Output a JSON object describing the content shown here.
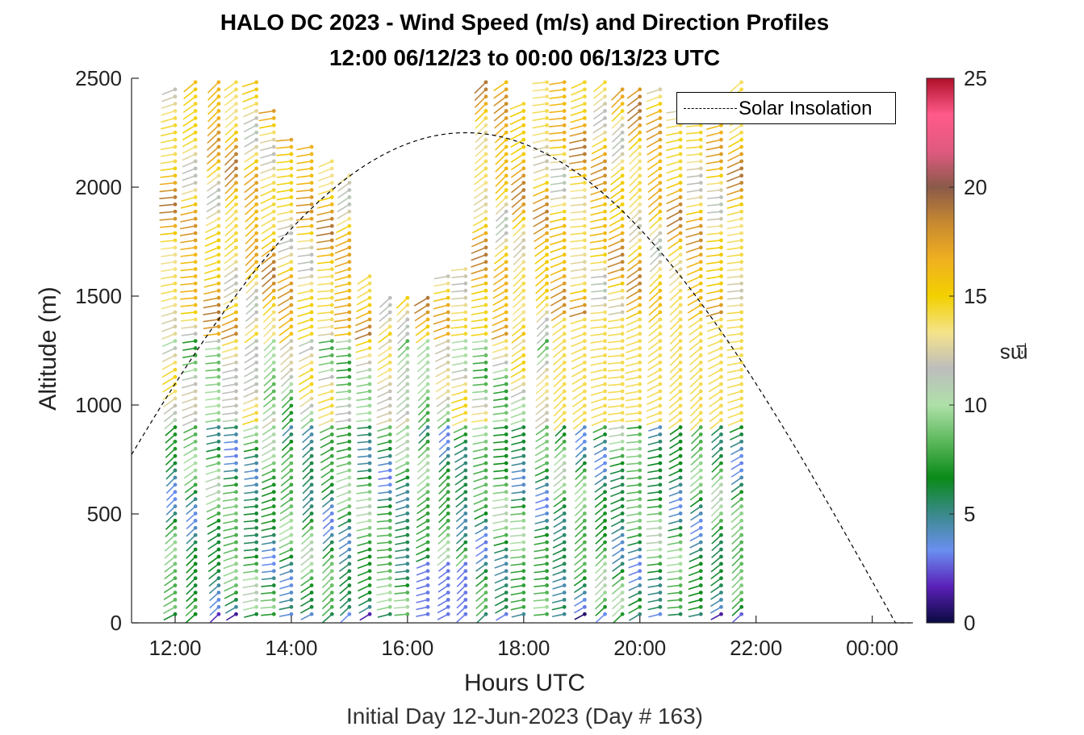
{
  "figure": {
    "title_line1": "HALO DC 2023 - Wind Speed (m/s) and Direction Profiles",
    "title_line2": "12:00 06/12/23 to 00:00 06/13/23  UTC",
    "xlabel": "Hours UTC",
    "ylabel": "Altitude (m)",
    "subnote": "Initial Day 12-Jun-2023 (Day # 163)",
    "colorbar_unit": "ms",
    "colorbar_unit_exp": "-1",
    "legend_label": "Solar Insolation"
  },
  "chart_data": {
    "type": "scatter",
    "title": "HALO DC 2023 - Wind Speed (m/s) and Direction Profiles",
    "subtitle": "12:00 06/12/23 to 00:00 06/13/23  UTC",
    "xlabel": "Hours UTC",
    "ylabel": "Altitude (m)",
    "x_range_hours": [
      11.25,
      24.7
    ],
    "ylim": [
      0,
      2500
    ],
    "x_ticks": [
      12,
      14,
      16,
      18,
      20,
      22,
      24
    ],
    "x_tick_labels": [
      "12:00",
      "14:00",
      "16:00",
      "18:00",
      "20:00",
      "22:00",
      "00:00"
    ],
    "y_ticks": [
      0,
      500,
      1000,
      1500,
      2000,
      2500
    ],
    "y_tick_labels": [
      "0",
      "500",
      "1000",
      "1500",
      "2000",
      "2500"
    ],
    "grid": false,
    "colorbar": {
      "label": "ms-1",
      "range": [
        0,
        25
      ],
      "ticks": [
        0,
        5,
        10,
        15,
        20,
        25
      ],
      "tick_labels": [
        "0",
        "5",
        "10",
        "15",
        "20",
        "25"
      ],
      "colors": [
        "#0a0a40",
        "#5a20b8",
        "#6a8ff0",
        "#3a8a8a",
        "#0a8a18",
        "#5cb85c",
        "#aee0a8",
        "#bdbdbd",
        "#f5e38a",
        "#f2d000",
        "#f0b020",
        "#c88a30",
        "#8a5a4a",
        "#e05a80",
        "#ff5a8a",
        "#b0102a"
      ]
    },
    "legend": {
      "entries": [
        "Solar Insolation"
      ],
      "placement": "top-right"
    },
    "solar_insolation": {
      "style": "dashed",
      "peak_altitude": 2250,
      "peak_hour": 17.0,
      "left_edge_altitude": 650,
      "zero_hour": 24.4
    },
    "profile_times_hours": [
      12.0,
      12.35,
      12.75,
      13.05,
      13.4,
      13.7,
      14.0,
      14.35,
      14.7,
      15.0,
      15.35,
      15.7,
      16.0,
      16.35,
      16.7,
      17.0,
      17.35,
      17.7,
      18.0,
      18.4,
      18.7,
      19.05,
      19.4,
      19.7,
      20.0,
      20.35,
      20.7,
      21.05,
      21.4,
      21.75
    ],
    "profile_tops_m": [
      2480,
      2500,
      2500,
      2500,
      2500,
      2380,
      2250,
      2200,
      2120,
      2060,
      1600,
      1520,
      1520,
      1500,
      1620,
      1650,
      2500,
      2500,
      2400,
      2500,
      2500,
      2500,
      2500,
      2480,
      2480,
      2450,
      2350,
      2300,
      2400,
      2500
    ],
    "speed_regime_ms": [
      {
        "alt_range": [
          0,
          60
        ],
        "speed": 4.5
      },
      {
        "alt_range": [
          60,
          900
        ],
        "speed": 7.0
      },
      {
        "alt_range": [
          900,
          1300
        ],
        "speed": 11.0
      },
      {
        "alt_range": [
          1300,
          2500
        ],
        "speed": 15.0
      }
    ]
  }
}
